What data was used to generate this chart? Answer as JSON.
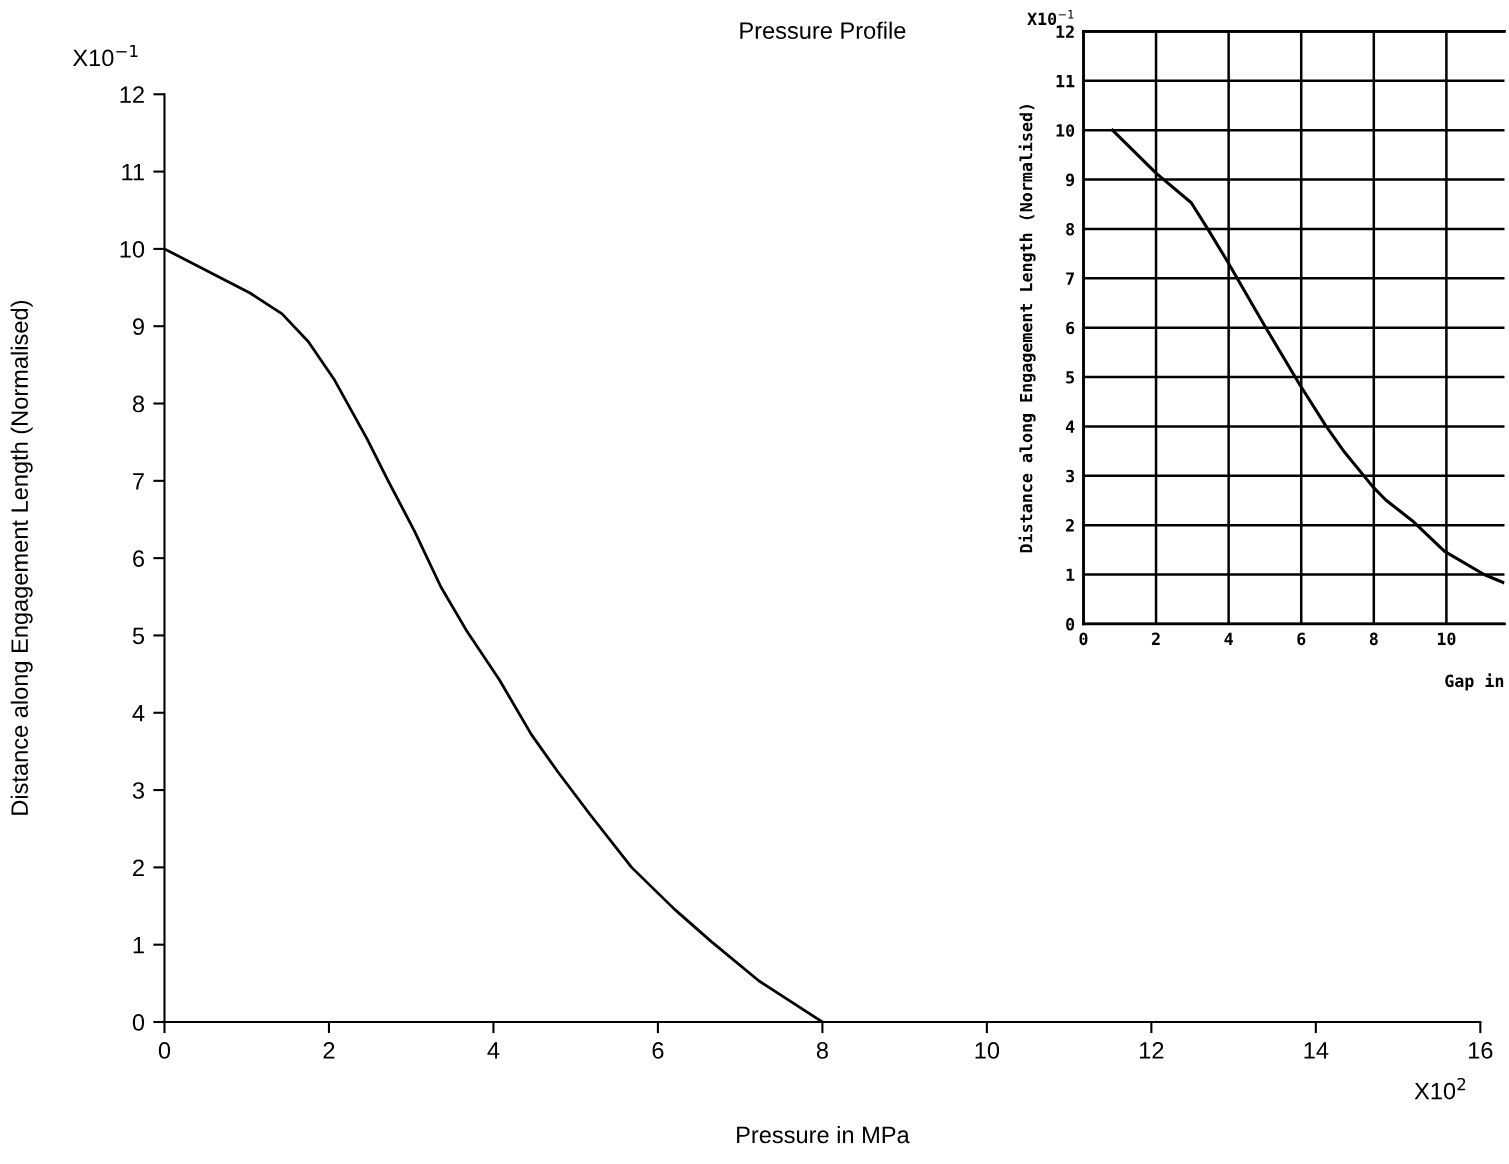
{
  "chart_data": [
    {
      "type": "line",
      "title": "Pressure Profile",
      "xlabel": "Pressure in MPa",
      "ylabel": "Distance along Engagement Length (Normalised)",
      "x": [
        0,
        1.04,
        1.43,
        1.75,
        2.07,
        2.46,
        2.72,
        3.04,
        3.36,
        3.68,
        4.07,
        4.46,
        4.78,
        5.17,
        5.68,
        6.2,
        6.65,
        7.23,
        8.0
      ],
      "series": [
        {
          "color": "#000000",
          "values": [
            10.0,
            9.43,
            9.16,
            8.8,
            8.3,
            7.55,
            7.0,
            6.35,
            5.63,
            5.05,
            4.43,
            3.72,
            3.24,
            2.69,
            2.0,
            1.46,
            1.04,
            0.53,
            0.0
          ]
        }
      ],
      "xlim": [
        0,
        16
      ],
      "xticks": [
        0,
        2,
        4,
        6,
        8,
        10,
        12,
        14,
        16
      ],
      "ylim": [
        0,
        12
      ],
      "yticks": [
        0,
        1,
        2,
        3,
        4,
        5,
        6,
        7,
        8,
        9,
        10,
        11,
        12
      ],
      "grid": false,
      "annotations": [
        "X10$^{−1}$",
        "X10$^{2}$"
      ]
    },
    {
      "type": "line",
      "xlabel": "Gap in",
      "ylabel": "Distance along Engagement Length (Normalised)",
      "x": [
        0.8,
        2.0,
        2.97,
        3.44,
        3.96,
        5.0,
        5.94,
        6.67,
        7.19,
        7.97,
        8.33,
        9.06,
        9.95,
        11.04,
        11.56
      ],
      "series": [
        {
          "color": "#000000",
          "values": [
            10.0,
            9.13,
            8.53,
            7.98,
            7.35,
            6.03,
            4.87,
            4.02,
            3.48,
            2.78,
            2.51,
            2.09,
            1.47,
            1.0,
            0.84
          ]
        }
      ],
      "xlim": [
        0,
        11.6
      ],
      "xticks": [
        0,
        2,
        4,
        6,
        8,
        10
      ],
      "ylim": [
        0,
        12
      ],
      "yticks": [
        0,
        1,
        2,
        3,
        4,
        5,
        6,
        7,
        8,
        9,
        10,
        11,
        12
      ],
      "grid": true,
      "annotations": [
        "X10$^{−1}$"
      ]
    }
  ]
}
